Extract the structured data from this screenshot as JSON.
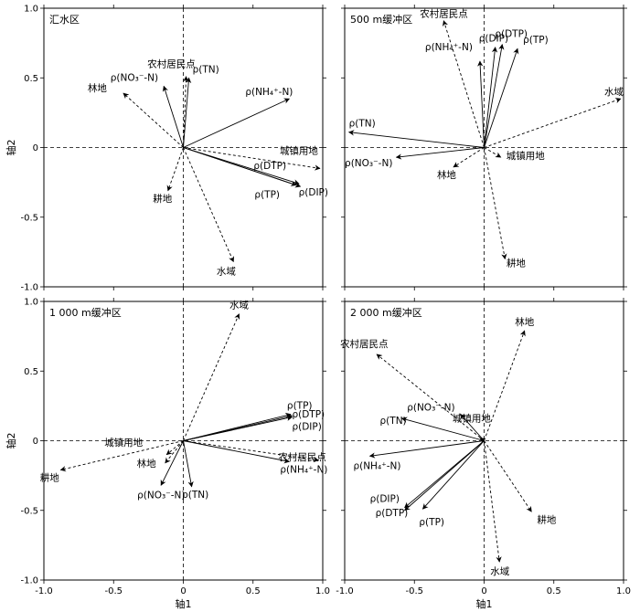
{
  "chart_data": [
    {
      "type": "scatter",
      "title": "汇水区",
      "xlabel": "",
      "ylabel": "轴2",
      "xlim": [
        -1.0,
        1.0
      ],
      "ylim": [
        -1.0,
        1.0
      ],
      "xticks": [
        "-1.0",
        "-0.5",
        "0",
        "0.5",
        "1.0"
      ],
      "yticks": [
        "1.0",
        "0.5",
        "0",
        "-0.5",
        "-1.0"
      ],
      "vectors": [
        {
          "label": "ρ(TN)",
          "x": 0.04,
          "y": 0.5,
          "style": "solid"
        },
        {
          "label": "ρ(NO₃⁻-N)",
          "x": -0.14,
          "y": 0.44,
          "style": "solid"
        },
        {
          "label": "ρ(NH₄⁺-N)",
          "x": 0.76,
          "y": 0.35,
          "style": "solid"
        },
        {
          "label": "ρ(DTP)",
          "x": 0.83,
          "y": -0.26,
          "style": "solid"
        },
        {
          "label": "ρ(DIP)",
          "x": 0.84,
          "y": -0.28,
          "style": "solid"
        },
        {
          "label": "ρ(TP)",
          "x": 0.81,
          "y": -0.27,
          "style": "solid"
        },
        {
          "label": "农村居民点",
          "x": 0.02,
          "y": 0.51,
          "style": "dashed"
        },
        {
          "label": "林地",
          "x": -0.43,
          "y": 0.39,
          "style": "dashed"
        },
        {
          "label": "城镇用地",
          "x": 0.98,
          "y": -0.15,
          "style": "dashed"
        },
        {
          "label": "耕地",
          "x": -0.11,
          "y": -0.31,
          "style": "dashed"
        },
        {
          "label": "水域",
          "x": 0.36,
          "y": -0.82,
          "style": "dashed"
        }
      ]
    },
    {
      "type": "scatter",
      "title": "500 m缓冲区",
      "xlabel": "",
      "ylabel": "",
      "xlim": [
        -1.0,
        1.0
      ],
      "ylim": [
        -1.0,
        1.0
      ],
      "xticks": [
        "-1.0",
        "-0.5",
        "0",
        "0.5",
        "1.0"
      ],
      "yticks": [
        "1.0",
        "0.5",
        "0",
        "-0.5",
        "-1.0"
      ],
      "vectors": [
        {
          "label": "ρ(DIP)",
          "x": 0.08,
          "y": 0.72,
          "style": "solid"
        },
        {
          "label": "ρ(DTP)",
          "x": 0.13,
          "y": 0.74,
          "style": "solid"
        },
        {
          "label": "ρ(TP)",
          "x": 0.24,
          "y": 0.71,
          "style": "solid"
        },
        {
          "label": "ρ(NH₄⁺-N)",
          "x": -0.03,
          "y": 0.62,
          "style": "solid"
        },
        {
          "label": "ρ(TN)",
          "x": -0.97,
          "y": 0.11,
          "style": "solid"
        },
        {
          "label": "ρ(NO₃⁻-N)",
          "x": -0.63,
          "y": -0.07,
          "style": "solid"
        },
        {
          "label": "农村居民点",
          "x": -0.29,
          "y": 0.91,
          "style": "dashed"
        },
        {
          "label": "水域",
          "x": 0.98,
          "y": 0.35,
          "style": "dashed"
        },
        {
          "label": "城镇用地",
          "x": 0.12,
          "y": -0.07,
          "style": "dashed"
        },
        {
          "label": "林地",
          "x": -0.22,
          "y": -0.14,
          "style": "dashed"
        },
        {
          "label": "耕地",
          "x": 0.15,
          "y": -0.8,
          "style": "dashed"
        }
      ]
    },
    {
      "type": "scatter",
      "title": "1 000 m缓冲区",
      "xlabel": "",
      "ylabel": "轴2",
      "xlim": [
        -1.0,
        1.0
      ],
      "ylim": [
        -1.0,
        1.0
      ],
      "xticks": [
        "-1.0",
        "-0.5",
        "0",
        "0.5",
        "1.0"
      ],
      "yticks": [
        "1.0",
        "0.5",
        "0",
        "-0.5",
        "-1.0"
      ],
      "vectors": [
        {
          "label": "ρ(TP)",
          "x": 0.77,
          "y": 0.19,
          "style": "solid"
        },
        {
          "label": "ρ(DTP)",
          "x": 0.78,
          "y": 0.18,
          "style": "solid"
        },
        {
          "label": "ρ(DIP)",
          "x": 0.78,
          "y": 0.17,
          "style": "solid"
        },
        {
          "label": "ρ(NO₃⁻-N)",
          "x": -0.16,
          "y": -0.32,
          "style": "solid"
        },
        {
          "label": "ρ(TN)",
          "x": 0.06,
          "y": -0.33,
          "style": "solid"
        },
        {
          "label": "ρ(NH₄⁺-N)",
          "x": 0.76,
          "y": -0.15,
          "style": "solid"
        },
        {
          "label": "水域",
          "x": 0.4,
          "y": 0.91,
          "style": "dashed"
        },
        {
          "label": "耕地",
          "x": -0.88,
          "y": -0.21,
          "style": "dashed"
        },
        {
          "label": "城镇用地",
          "x": -0.12,
          "y": -0.1,
          "style": "dashed"
        },
        {
          "label": "林地",
          "x": -0.13,
          "y": -0.16,
          "style": "dashed"
        },
        {
          "label": "农村居民点",
          "x": 0.97,
          "y": -0.14,
          "style": "dashed"
        }
      ]
    },
    {
      "type": "scatter",
      "title": "2 000 m缓冲区",
      "xlabel": "",
      "ylabel": "",
      "xlim": [
        -1.0,
        1.0
      ],
      "ylim": [
        -1.0,
        1.0
      ],
      "xticks": [
        "-1.0",
        "-0.5",
        "0",
        "0.5",
        "1.0"
      ],
      "yticks": [
        "1.0",
        "0.5",
        "0",
        "-0.5",
        "-1.0"
      ],
      "vectors": [
        {
          "label": "林地",
          "x": 0.29,
          "y": 0.79,
          "style": "dashed"
        },
        {
          "label": "农村居民点",
          "x": -0.77,
          "y": 0.62,
          "style": "dashed"
        },
        {
          "label": "城镇用地",
          "x": -0.03,
          "y": 0.02,
          "style": "dashed"
        },
        {
          "label": "耕地",
          "x": 0.34,
          "y": -0.51,
          "style": "dashed"
        },
        {
          "label": "水域",
          "x": 0.11,
          "y": -0.87,
          "style": "dashed"
        },
        {
          "label": "ρ(NO₃⁻-N)",
          "x": -0.17,
          "y": 0.19,
          "style": "solid"
        },
        {
          "label": "ρ(TN)",
          "x": -0.59,
          "y": 0.16,
          "style": "solid"
        },
        {
          "label": "ρ(NH₄⁺-N)",
          "x": -0.82,
          "y": -0.11,
          "style": "solid"
        },
        {
          "label": "ρ(DIP)",
          "x": -0.57,
          "y": -0.48,
          "style": "solid"
        },
        {
          "label": "ρ(DTP)",
          "x": -0.57,
          "y": -0.5,
          "style": "solid"
        },
        {
          "label": "ρ(TP)",
          "x": -0.44,
          "y": -0.49,
          "style": "solid"
        }
      ]
    }
  ],
  "axis_x_label": "轴1"
}
